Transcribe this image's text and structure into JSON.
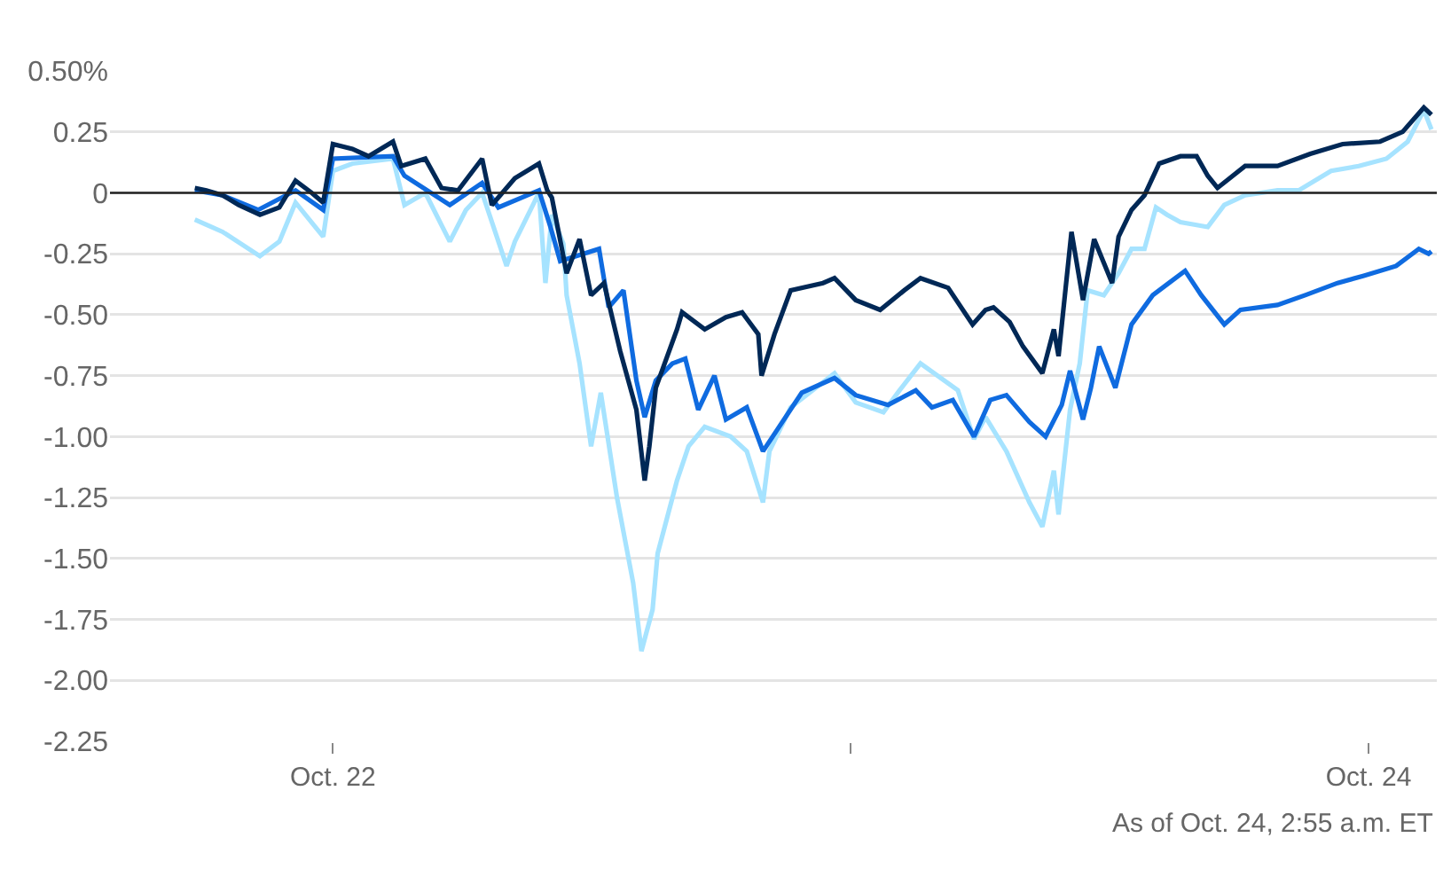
{
  "chart_data": {
    "type": "line",
    "annotations": [
      "As of Oct. 24, 2:55 a.m. ET"
    ],
    "xlim": [
      "--10-21T13:40",
      "--10-24T03:10"
    ],
    "xticks": [
      {
        "value": "--10-22",
        "label": "Oct. 22"
      },
      {
        "value": "--10-23",
        "label": null
      },
      {
        "value": "--10-24",
        "label": "Oct. 24"
      }
    ],
    "ylim": [
      -2.25,
      0.5
    ],
    "yticks": [
      {
        "value": 0.5,
        "label": "0.50%"
      },
      {
        "value": 0.25,
        "label": "0.25"
      },
      0,
      {
        "value": -0.25,
        "label": "-0.25"
      },
      {
        "value": -0.5,
        "label": "-0.50"
      },
      {
        "value": -0.75,
        "label": "-0.75"
      },
      {
        "value": -1,
        "label": "-1.00"
      },
      {
        "value": -1.25,
        "label": "-1.25"
      },
      {
        "value": -1.5,
        "label": "-1.50"
      },
      {
        "value": -1.75,
        "label": "-1.75"
      },
      {
        "value": -2,
        "label": "-2.00"
      },
      {
        "value": -2.25,
        "label": "-2.25"
      }
    ],
    "grid": "y",
    "marker": "none",
    "line_style": "solid",
    "ref_lines": [
      {
        "axis": "y",
        "value": 0,
        "color": "#222222"
      }
    ],
    "series": [
      {
        "color": "#a6e3ff",
        "x": [
          "--10-21T17:36",
          "--10-21T18:53",
          "--10-21T20:37",
          "--10-21T21:31",
          "--10-21T22:16",
          "--10-21T23:33",
          "--10-22T00:00",
          "--10-22T00:54",
          "--10-22T02:47",
          "--10-22T03:19",
          "--10-22T04:17",
          "--10-22T05:25",
          "--10-22T06:10",
          "--10-22T06:55",
          "--10-22T08:03",
          "--10-22T08:26",
          "--10-22T09:33",
          "--10-22T09:51",
          "--10-22T10:09",
          "--10-22T10:41",
          "--10-22T10:50",
          "--10-22T11:26",
          "--10-22T11:58",
          "--10-22T12:25",
          "--10-22T13:10",
          "--10-22T13:55",
          "--10-22T14:18",
          "--10-22T14:49",
          "--10-22T15:03",
          "--10-22T15:57",
          "--10-22T16:29",
          "--10-22T17:14",
          "--10-22T18:26",
          "--10-22T19:11",
          "--10-22T19:56",
          "--10-22T20:14",
          "--10-22T21:13",
          "--10-22T23:15",
          "--10-23T00:14",
          "--10-23T01:31",
          "--10-23T02:16",
          "--10-23T03:14",
          "--10-23T04:58",
          "--10-23T05:43",
          "--10-23T06:15",
          "--10-23T07:13",
          "--10-23T08:17",
          "--10-23T08:53",
          "--10-23T09:25",
          "--10-23T09:38",
          "--10-23T10:10",
          "--10-23T10:37",
          "--10-23T10:59",
          "--10-23T11:44",
          "--10-23T12:25",
          "--10-23T13:01",
          "--10-23T13:37",
          "--10-23T14:09",
          "--10-23T14:40",
          "--10-23T15:17",
          "--10-23T16:33",
          "--10-23T17:19",
          "--10-23T18:17",
          "--10-23T19:47",
          "--10-23T20:46",
          "--10-23T22:16",
          "--10-23T23:33",
          "--10-24T00:50",
          "--10-24T01:49",
          "--10-24T02:34",
          "--10-24T02:55"
        ],
        "values": [
          -0.11,
          -0.16,
          -0.26,
          -0.2,
          -0.04,
          -0.18,
          0.09,
          0.12,
          0.14,
          -0.05,
          0,
          -0.2,
          -0.07,
          0,
          -0.3,
          -0.2,
          0,
          -0.37,
          -0.09,
          -0.21,
          -0.42,
          -0.7,
          -1.04,
          -0.82,
          -1.25,
          -1.6,
          -1.88,
          -1.71,
          -1.48,
          -1.18,
          -1.04,
          -0.96,
          -1,
          -1.06,
          -1.27,
          -1.06,
          -0.88,
          -0.74,
          -0.86,
          -0.9,
          -0.81,
          -0.7,
          -0.81,
          -1.01,
          -0.92,
          -1.06,
          -1.27,
          -1.37,
          -1.14,
          -1.32,
          -0.89,
          -0.7,
          -0.4,
          -0.42,
          -0.33,
          -0.23,
          -0.23,
          -0.06,
          -0.09,
          -0.12,
          -0.14,
          -0.05,
          -0.01,
          0.01,
          0.01,
          0.09,
          0.11,
          0.14,
          0.21,
          0.34,
          0.26
        ]
      },
      {
        "color": "#0f6be0",
        "x": [
          "--10-21T17:36",
          "--10-21T18:53",
          "--10-21T20:32",
          "--10-21T22:16",
          "--10-21T23:33",
          "--10-22T00:00",
          "--10-22T02:47",
          "--10-22T03:19",
          "--10-22T05:25",
          "--10-22T06:55",
          "--10-22T07:40",
          "--10-22T09:33",
          "--10-22T10:05",
          "--10-22T10:32",
          "--10-22T12:20",
          "--10-22T12:47",
          "--10-22T13:28",
          "--10-22T14:04",
          "--10-22T14:27",
          "--10-22T14:58",
          "--10-22T15:44",
          "--10-22T16:20",
          "--10-22T16:56",
          "--10-22T17:41",
          "--10-22T18:13",
          "--10-22T19:11",
          "--10-22T19:56",
          "--10-22T20:41",
          "--10-22T21:44",
          "--10-22T23:15",
          "--10-23T00:14",
          "--10-23T01:44",
          "--10-23T03:01",
          "--10-23T03:46",
          "--10-23T04:44",
          "--10-23T05:43",
          "--10-23T06:28",
          "--10-23T07:13",
          "--10-23T08:17",
          "--10-23T09:02",
          "--10-23T09:47",
          "--10-23T10:10",
          "--10-23T10:46",
          "--10-23T11:08",
          "--10-23T11:31",
          "--10-23T12:16",
          "--10-23T13:01",
          "--10-23T14:00",
          "--10-23T14:45",
          "--10-23T15:30",
          "--10-23T16:15",
          "--10-23T17:19",
          "--10-23T18:04",
          "--10-23T19:47",
          "--10-23T21:04",
          "--10-23T22:34",
          "--10-23T23:47",
          "--10-24T01:17",
          "--10-24T02:20",
          "--10-24T02:47",
          "--10-24T02:55"
        ],
        "values": [
          0.01,
          -0.01,
          -0.07,
          0.01,
          -0.07,
          0.14,
          0.15,
          0.07,
          -0.05,
          0.04,
          -0.06,
          0.01,
          -0.14,
          -0.28,
          -0.23,
          -0.47,
          -0.4,
          -0.77,
          -0.92,
          -0.77,
          -0.7,
          -0.68,
          -0.89,
          -0.75,
          -0.93,
          -0.88,
          -1.06,
          -0.96,
          -0.82,
          -0.76,
          -0.83,
          -0.87,
          -0.81,
          -0.88,
          -0.85,
          -1,
          -0.85,
          -0.83,
          -0.94,
          -1,
          -0.87,
          -0.73,
          -0.93,
          -0.8,
          -0.63,
          -0.8,
          -0.54,
          -0.42,
          -0.37,
          -0.32,
          -0.42,
          -0.54,
          -0.48,
          -0.46,
          -0.42,
          -0.37,
          -0.34,
          -0.3,
          -0.23,
          -0.25,
          -0.24
        ]
      },
      {
        "color": "#002856",
        "x": [
          "--10-21T17:36",
          "--10-21T18:08",
          "--10-21T18:53",
          "--10-21T19:38",
          "--10-21T20:37",
          "--10-21T21:31",
          "--10-21T22:16",
          "--10-21T23:01",
          "--10-21T23:33",
          "--10-22T00:00",
          "--10-22T00:54",
          "--10-22T01:39",
          "--10-22T02:47",
          "--10-22T03:10",
          "--10-22T04:17",
          "--10-22T05:02",
          "--10-22T05:48",
          "--10-22T06:55",
          "--10-22T07:22",
          "--10-22T08:26",
          "--10-22T09:33",
          "--10-22T09:56",
          "--10-22T10:09",
          "--10-22T10:50",
          "--10-22T11:26",
          "--10-22T11:58",
          "--10-22T12:34",
          "--10-22T13:19",
          "--10-22T14:04",
          "--10-22T14:27",
          "--10-22T14:40",
          "--10-22T14:58",
          "--10-22T15:57",
          "--10-22T16:11",
          "--10-22T17:14",
          "--10-22T18:13",
          "--10-22T18:58",
          "--10-22T19:43",
          "--10-22T19:52",
          "--10-22T20:28",
          "--10-22T21:13",
          "--10-22T22:43",
          "--10-22T23:15",
          "--10-23T00:14",
          "--10-23T01:22",
          "--10-23T02:29",
          "--10-23T03:14",
          "--10-23T04:31",
          "--10-23T05:39",
          "--10-23T06:15",
          "--10-23T06:37",
          "--10-23T07:22",
          "--10-23T07:59",
          "--10-23T08:53",
          "--10-23T09:25",
          "--10-23T09:38",
          "--10-23T10:14",
          "--10-23T10:46",
          "--10-23T11:17",
          "--10-23T12:07",
          "--10-23T12:25",
          "--10-23T13:01",
          "--10-23T13:37",
          "--10-23T14:18",
          "--10-23T15:17",
          "--10-23T16:02",
          "--10-23T16:33",
          "--10-23T17:00",
          "--10-23T18:17",
          "--10-23T19:47",
          "--10-23T21:18",
          "--10-23T22:48",
          "--10-24T00:32",
          "--10-24T01:35",
          "--10-24T02:34",
          "--10-24T02:55"
        ],
        "values": [
          0.02,
          0.01,
          -0.01,
          -0.05,
          -0.09,
          -0.06,
          0.05,
          0,
          -0.04,
          0.2,
          0.18,
          0.15,
          0.21,
          0.11,
          0.14,
          0.02,
          0.01,
          0.14,
          -0.05,
          0.06,
          0.12,
          0.01,
          -0.02,
          -0.33,
          -0.19,
          -0.42,
          -0.37,
          -0.65,
          -0.89,
          -1.18,
          -1.04,
          -0.8,
          -0.56,
          -0.49,
          -0.56,
          -0.51,
          -0.49,
          -0.58,
          -0.75,
          -0.58,
          -0.4,
          -0.37,
          -0.35,
          -0.44,
          -0.48,
          -0.4,
          -0.35,
          -0.39,
          -0.54,
          -0.48,
          -0.47,
          -0.53,
          -0.63,
          -0.74,
          -0.56,
          -0.67,
          -0.16,
          -0.44,
          -0.19,
          -0.37,
          -0.18,
          -0.07,
          -0.01,
          0.12,
          0.15,
          0.15,
          0.07,
          0.02,
          0.11,
          0.11,
          0.16,
          0.2,
          0.21,
          0.25,
          0.35,
          0.32
        ]
      }
    ]
  }
}
